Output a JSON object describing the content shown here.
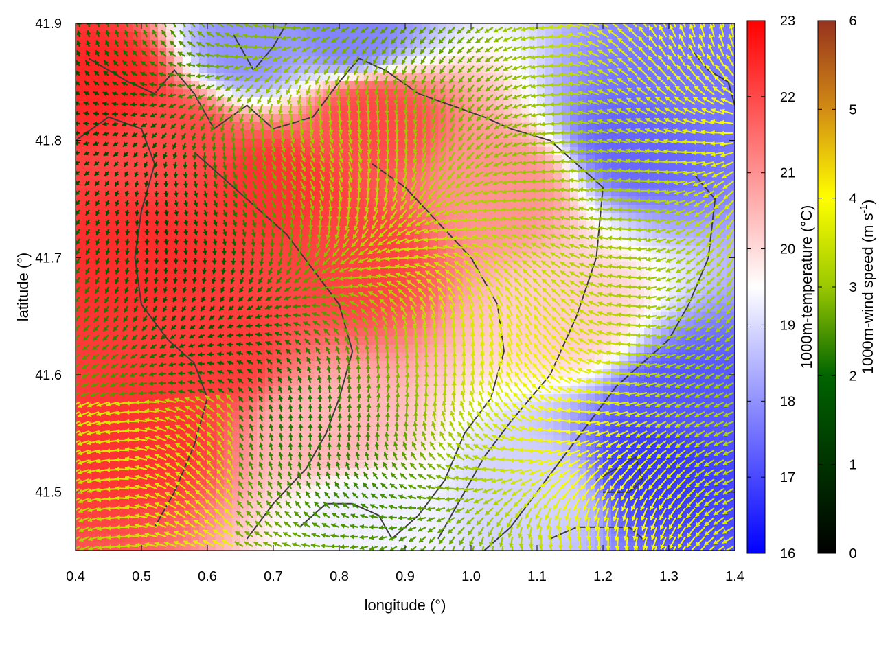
{
  "chart_data": [
    {
      "type": "heatmap",
      "title": "",
      "xlabel": "longitude (°)",
      "ylabel": "latitude (°)",
      "xlim": [
        0.4,
        1.4
      ],
      "ylim": [
        41.45,
        41.9
      ],
      "x_ticks": [
        "0.4",
        "0.5",
        "0.6",
        "0.7",
        "0.8",
        "0.9",
        "1.0",
        "1.1",
        "1.2",
        "1.3",
        "1.4"
      ],
      "y_ticks": [
        "41.5",
        "41.6",
        "41.7",
        "41.8",
        "41.9"
      ],
      "grid": false,
      "field": "1000m-temperature",
      "overlay": "1000m wind vectors colored by 1000m-wind speed, with dark-grey topographic contour lines",
      "temperature_samples": [
        {
          "lon": 0.45,
          "lat": 41.85,
          "value": 22.5
        },
        {
          "lon": 0.5,
          "lat": 41.7,
          "value": 22.4
        },
        {
          "lon": 0.5,
          "lat": 41.55,
          "value": 22.3
        },
        {
          "lon": 0.55,
          "lat": 41.8,
          "value": 22.0
        },
        {
          "lon": 0.6,
          "lat": 41.62,
          "value": 22.2
        },
        {
          "lon": 0.7,
          "lat": 41.76,
          "value": 22.3
        },
        {
          "lon": 0.85,
          "lat": 41.82,
          "value": 22.0
        },
        {
          "lon": 0.82,
          "lat": 41.7,
          "value": 22.1
        },
        {
          "lon": 0.78,
          "lat": 41.55,
          "value": 20.5
        },
        {
          "lon": 0.83,
          "lat": 41.48,
          "value": 19.3
        },
        {
          "lon": 0.66,
          "lat": 41.88,
          "value": 18.0
        },
        {
          "lon": 0.82,
          "lat": 41.89,
          "value": 17.8
        },
        {
          "lon": 1.05,
          "lat": 41.76,
          "value": 21.0
        },
        {
          "lon": 1.25,
          "lat": 41.8,
          "value": 17.4
        },
        {
          "lon": 1.35,
          "lat": 41.85,
          "value": 17.6
        },
        {
          "lon": 1.15,
          "lat": 41.65,
          "value": 20.2
        },
        {
          "lon": 1.28,
          "lat": 41.52,
          "value": 16.8
        },
        {
          "lon": 1.33,
          "lat": 41.58,
          "value": 17.2
        },
        {
          "lon": 1.1,
          "lat": 41.5,
          "value": 18.9
        }
      ]
    },
    {
      "type": "colorbar",
      "label": "1000m-temperature (°C)",
      "range": [
        16,
        23
      ],
      "ticks": [
        "16",
        "17",
        "18",
        "19",
        "20",
        "21",
        "22",
        "23"
      ],
      "colors": [
        "#0000ff",
        "#ffffff",
        "#ff0000"
      ]
    },
    {
      "type": "colorbar",
      "label_main": "1000m-wind speed (m s",
      "label_sup": "-1",
      "label_end": ")",
      "range": [
        0,
        6
      ],
      "ticks": [
        "0",
        "1",
        "2",
        "3",
        "4",
        "5",
        "6"
      ],
      "colors": [
        "#000000",
        "#006400",
        "#9ac800",
        "#ffff00",
        "#d28c14",
        "#96321e"
      ]
    }
  ]
}
